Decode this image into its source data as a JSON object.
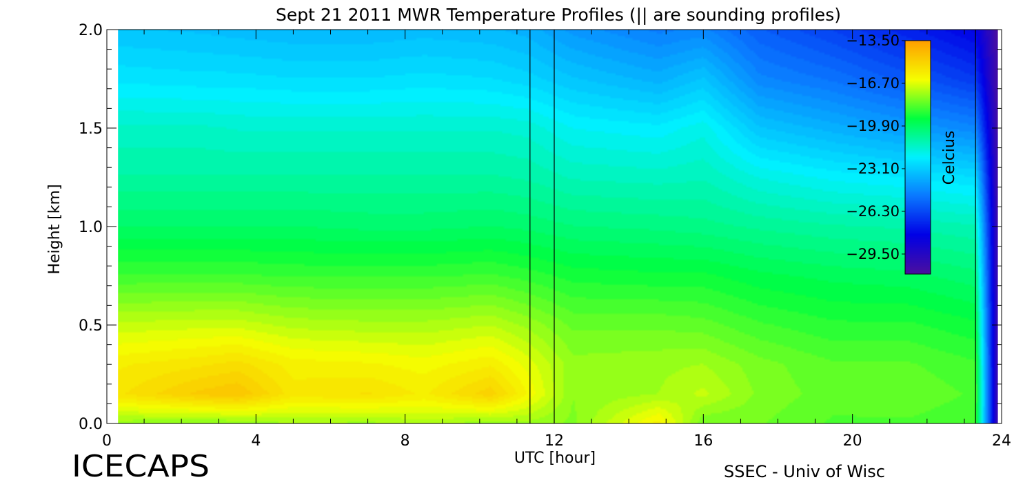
{
  "chart_data": {
    "type": "heatmap",
    "title": "Sept 21 2011 MWR Temperature Profiles (|| are sounding profiles)",
    "xlabel": "UTC [hour]",
    "ylabel": "Height [km]",
    "xlim": [
      0,
      24
    ],
    "ylim": [
      0,
      2
    ],
    "x_ticks": [
      "0",
      "4",
      "8",
      "12",
      "16",
      "20",
      "24"
    ],
    "y_ticks": [
      "0.0",
      "0.5",
      "1.0",
      "1.5",
      "2.0"
    ],
    "data_x_range": [
      0.3,
      23.9
    ],
    "colorbar": {
      "label": "Celcius",
      "min": -31.0,
      "max": -13.5,
      "tick_labels": [
        "-13.50",
        "-16.70",
        "-19.90",
        "-23.10",
        "-26.30",
        "-29.50"
      ],
      "colormap": [
        "#4b0f9f",
        "#0000e6",
        "#0a78ff",
        "#00f0ff",
        "#00ff40",
        "#f5ff00",
        "#ffa000"
      ]
    },
    "sounding_profiles_utc": [
      11.35,
      12.0,
      23.3
    ],
    "heights_km": [
      0.0,
      0.15,
      0.3,
      0.5,
      0.75,
      1.0,
      1.25,
      1.5,
      1.75,
      2.0
    ],
    "profiles": [
      {
        "utc": 0.3,
        "temps": [
          -17.6,
          -15.6,
          -15.9,
          -17.0,
          -18.6,
          -19.9,
          -20.8,
          -21.4,
          -22.5,
          -23.3
        ]
      },
      {
        "utc": 2.5,
        "temps": [
          -17.8,
          -14.8,
          -15.6,
          -16.9,
          -18.6,
          -19.9,
          -20.8,
          -21.4,
          -22.6,
          -23.4
        ]
      },
      {
        "utc": 3.5,
        "temps": [
          -17.7,
          -14.6,
          -15.4,
          -16.9,
          -18.6,
          -19.9,
          -20.8,
          -21.5,
          -22.6,
          -23.5
        ]
      },
      {
        "utc": 5.0,
        "temps": [
          -17.4,
          -15.7,
          -16.0,
          -17.2,
          -18.7,
          -19.9,
          -20.8,
          -21.5,
          -22.7,
          -23.6
        ]
      },
      {
        "utc": 7.0,
        "temps": [
          -17.5,
          -15.5,
          -16.1,
          -17.3,
          -18.7,
          -20.0,
          -20.8,
          -21.5,
          -22.7,
          -23.6
        ]
      },
      {
        "utc": 8.5,
        "temps": [
          -17.3,
          -15.9,
          -16.3,
          -17.3,
          -18.7,
          -20.0,
          -20.8,
          -21.5,
          -22.6,
          -23.5
        ]
      },
      {
        "utc": 10.3,
        "temps": [
          -17.6,
          -15.0,
          -15.9,
          -17.1,
          -18.6,
          -19.9,
          -20.8,
          -21.5,
          -22.7,
          -23.6
        ]
      },
      {
        "utc": 11.3,
        "temps": [
          -17.5,
          -16.2,
          -16.6,
          -17.5,
          -18.8,
          -20.0,
          -20.9,
          -21.6,
          -22.9,
          -23.8
        ]
      },
      {
        "utc": 12.5,
        "temps": [
          -17.8,
          -17.7,
          -17.6,
          -18.1,
          -19.1,
          -20.2,
          -21.2,
          -22.1,
          -23.3,
          -24.4
        ]
      },
      {
        "utc": 14.8,
        "temps": [
          -16.0,
          -17.4,
          -17.5,
          -18.1,
          -19.2,
          -20.3,
          -21.3,
          -22.3,
          -23.8,
          -25.0
        ]
      },
      {
        "utc": 16.0,
        "temps": [
          -18.0,
          -17.0,
          -17.4,
          -18.2,
          -19.2,
          -20.4,
          -21.2,
          -21.9,
          -23.3,
          -24.8
        ]
      },
      {
        "utc": 17.5,
        "temps": [
          -18.0,
          -17.8,
          -17.9,
          -18.6,
          -19.5,
          -20.6,
          -21.8,
          -23.3,
          -24.8,
          -25.8
        ]
      },
      {
        "utc": 19.5,
        "temps": [
          -18.4,
          -18.2,
          -18.3,
          -18.9,
          -19.7,
          -20.8,
          -22.2,
          -23.8,
          -25.3,
          -26.5
        ]
      },
      {
        "utc": 21.5,
        "temps": [
          -18.4,
          -18.1,
          -18.3,
          -18.9,
          -19.8,
          -20.9,
          -22.4,
          -24.3,
          -26.0,
          -27.3
        ]
      },
      {
        "utc": 23.3,
        "temps": [
          -18.6,
          -18.4,
          -18.6,
          -19.2,
          -20.1,
          -21.1,
          -22.7,
          -24.8,
          -26.7,
          -28.1
        ]
      },
      {
        "utc": 23.9,
        "temps": [
          -30.6,
          -30.6,
          -30.6,
          -30.6,
          -30.6,
          -30.6,
          -30.7,
          -30.8,
          -30.9,
          -31.0
        ]
      }
    ]
  },
  "footer": {
    "brand": "ICECAPS",
    "credit": "SSEC - Univ of Wisc"
  }
}
